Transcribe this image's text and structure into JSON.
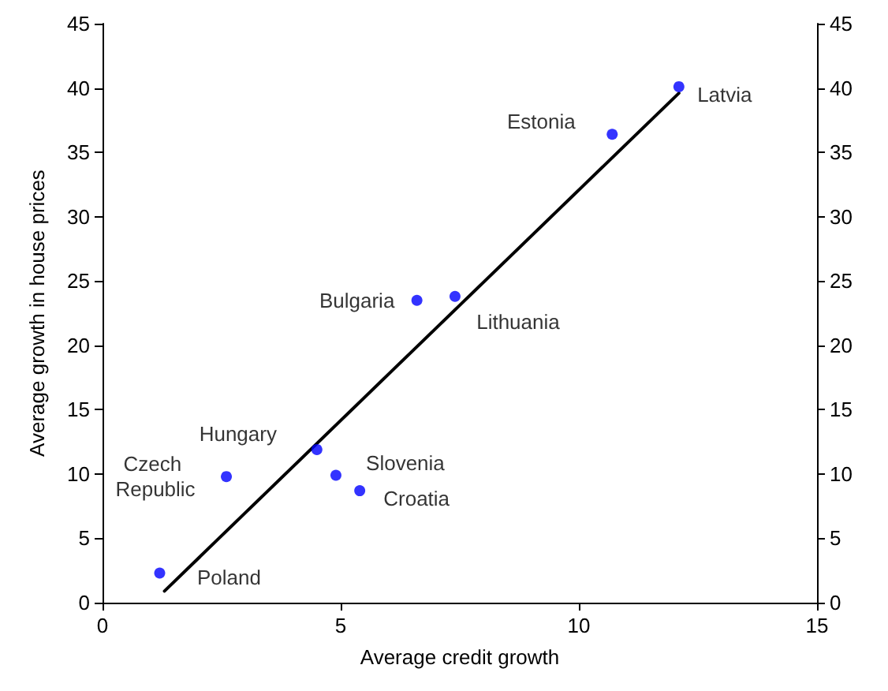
{
  "chart_data": {
    "type": "scatter",
    "xlabel": "Average credit growth",
    "ylabel": "Average growth in house prices",
    "x": [
      1.2,
      2.6,
      4.5,
      4.9,
      5.4,
      6.6,
      7.4,
      10.7,
      12.1
    ],
    "series": [
      {
        "color": "#0000ff",
        "values": [
          2.3,
          9.8,
          11.9,
          9.9,
          8.7,
          23.5,
          23.8,
          36.4,
          40.1
        ],
        "marker": "circle"
      },
      {
        "type": "line",
        "color": "#000000",
        "x": [
          1.3,
          12.1
        ],
        "values": [
          0.9,
          39.6
        ],
        "marker": "none",
        "line_style": "solid"
      }
    ],
    "annotations": [
      {
        "text": "Poland",
        "x": 1.2,
        "y": 2.3
      },
      {
        "text": "Czech Republic",
        "x": 2.6,
        "y": 9.8
      },
      {
        "text": "Hungary",
        "x": 4.5,
        "y": 11.9
      },
      {
        "text": "Slovenia",
        "x": 4.9,
        "y": 9.9
      },
      {
        "text": "Croatia",
        "x": 5.4,
        "y": 8.7
      },
      {
        "text": "Bulgaria",
        "x": 6.6,
        "y": 23.5
      },
      {
        "text": "Lithuania",
        "x": 7.4,
        "y": 23.8
      },
      {
        "text": "Estonia",
        "x": 10.7,
        "y": 36.4
      },
      {
        "text": "Latvia",
        "x": 12.1,
        "y": 40.1
      }
    ],
    "xlim": [
      0,
      15
    ],
    "xticks": [
      0,
      5,
      10,
      15
    ],
    "ylim": [
      0,
      45
    ],
    "yticks": [
      0,
      5,
      10,
      15,
      20,
      25,
      30,
      35,
      40,
      45
    ],
    "y2lim": [
      0,
      45
    ],
    "y2ticks": [
      0,
      5,
      10,
      15,
      20,
      25,
      30,
      35,
      40,
      45
    ],
    "grid": false
  }
}
